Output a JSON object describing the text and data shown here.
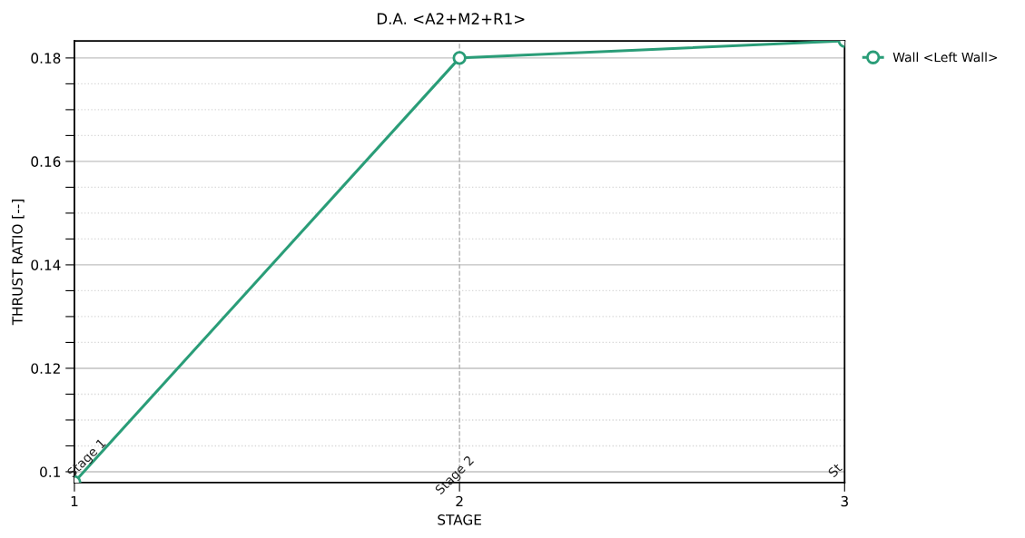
{
  "chart_data": {
    "type": "line",
    "subtitle": "D.A. <A2+M2+R1>",
    "xlabel": "STAGE",
    "ylabel": "THRUST RATIO [--]",
    "x": [
      1,
      2,
      3
    ],
    "series": [
      {
        "name": "Wall <Left Wall>",
        "color": "#2a9d78",
        "values": [
          0.098,
          0.18,
          0.1833
        ]
      }
    ],
    "xlim": [
      1,
      3
    ],
    "xticks": [
      1,
      2,
      3
    ],
    "ylim": [
      0.0979,
      0.1833
    ],
    "yticks": [
      0.1,
      {
        "value": 0.105,
        "label": null
      },
      {
        "value": 0.11,
        "label": null
      },
      {
        "value": 0.115,
        "label": null
      },
      0.12,
      {
        "value": 0.125,
        "label": null
      },
      {
        "value": 0.13,
        "label": null
      },
      {
        "value": 0.135,
        "label": null
      },
      0.14,
      {
        "value": 0.145,
        "label": null
      },
      {
        "value": 0.15,
        "label": null
      },
      {
        "value": 0.155,
        "label": null
      },
      0.16,
      {
        "value": 0.165,
        "label": null
      },
      {
        "value": 0.17,
        "label": null
      },
      {
        "value": 0.175,
        "label": null
      },
      0.18
    ],
    "ref_lines": [
      {
        "axis": "x",
        "value": 2,
        "label": null,
        "color": "#b0b0b0",
        "line_style": "dashed"
      }
    ],
    "annotations": [
      "Stage 1",
      "Stage 2",
      "St"
    ],
    "grid": "y",
    "legend": "top right",
    "marker": "circle",
    "line_style": "solid"
  }
}
